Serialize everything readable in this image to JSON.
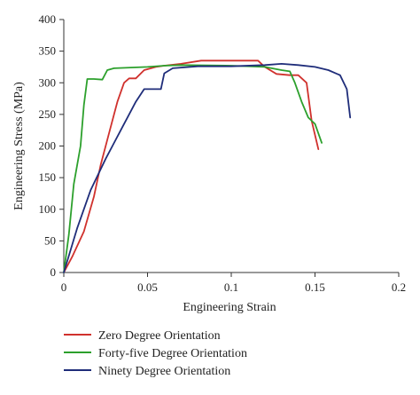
{
  "chart_data": {
    "type": "line",
    "title": "",
    "xlabel": "Engineering Strain",
    "ylabel": "Engineering Stress (MPa)",
    "xlim": [
      0,
      0.2
    ],
    "ylim": [
      0,
      400
    ],
    "xticks": [
      0,
      0.05,
      0.1,
      0.15,
      0.2
    ],
    "xtick_labels": [
      "0",
      "0.05",
      "0.1",
      "0.15",
      "0.2"
    ],
    "yticks": [
      0,
      50,
      100,
      150,
      200,
      250,
      300,
      350,
      400
    ],
    "ytick_labels": [
      "0",
      "50",
      "100",
      "150",
      "200",
      "250",
      "300",
      "350",
      "400"
    ],
    "grid": false,
    "legend_position": "bottom",
    "series": [
      {
        "name": "Zero Degree Orientation",
        "color": "#d0312d",
        "points": [
          [
            0,
            0
          ],
          [
            0.005,
            25
          ],
          [
            0.012,
            65
          ],
          [
            0.018,
            120
          ],
          [
            0.022,
            170
          ],
          [
            0.027,
            220
          ],
          [
            0.032,
            270
          ],
          [
            0.036,
            300
          ],
          [
            0.039,
            307
          ],
          [
            0.043,
            307
          ],
          [
            0.048,
            320
          ],
          [
            0.055,
            325
          ],
          [
            0.06,
            327
          ],
          [
            0.07,
            330
          ],
          [
            0.082,
            335
          ],
          [
            0.1,
            335
          ],
          [
            0.116,
            335
          ],
          [
            0.12,
            325
          ],
          [
            0.127,
            314
          ],
          [
            0.135,
            312
          ],
          [
            0.14,
            312
          ],
          [
            0.145,
            300
          ],
          [
            0.148,
            240
          ],
          [
            0.152,
            195
          ]
        ]
      },
      {
        "name": "Forty-five Degree Orientation",
        "color": "#2ca02c",
        "points": [
          [
            0,
            0
          ],
          [
            0.003,
            60
          ],
          [
            0.006,
            140
          ],
          [
            0.01,
            200
          ],
          [
            0.012,
            265
          ],
          [
            0.014,
            306
          ],
          [
            0.018,
            306
          ],
          [
            0.023,
            305
          ],
          [
            0.026,
            320
          ],
          [
            0.03,
            323
          ],
          [
            0.05,
            325
          ],
          [
            0.06,
            327
          ],
          [
            0.07,
            328
          ],
          [
            0.1,
            327
          ],
          [
            0.12,
            325
          ],
          [
            0.13,
            320
          ],
          [
            0.135,
            318
          ],
          [
            0.138,
            300
          ],
          [
            0.142,
            270
          ],
          [
            0.146,
            245
          ],
          [
            0.15,
            235
          ],
          [
            0.154,
            205
          ]
        ]
      },
      {
        "name": "Ninety Degree Orientation",
        "color": "#1f2d7a",
        "points": [
          [
            0,
            0
          ],
          [
            0.008,
            70
          ],
          [
            0.016,
            130
          ],
          [
            0.025,
            180
          ],
          [
            0.035,
            230
          ],
          [
            0.043,
            270
          ],
          [
            0.048,
            290
          ],
          [
            0.058,
            290
          ],
          [
            0.06,
            315
          ],
          [
            0.065,
            323
          ],
          [
            0.08,
            326
          ],
          [
            0.1,
            326
          ],
          [
            0.12,
            328
          ],
          [
            0.13,
            330
          ],
          [
            0.14,
            328
          ],
          [
            0.15,
            325
          ],
          [
            0.158,
            320
          ],
          [
            0.165,
            312
          ],
          [
            0.169,
            290
          ],
          [
            0.171,
            245
          ]
        ]
      }
    ]
  }
}
